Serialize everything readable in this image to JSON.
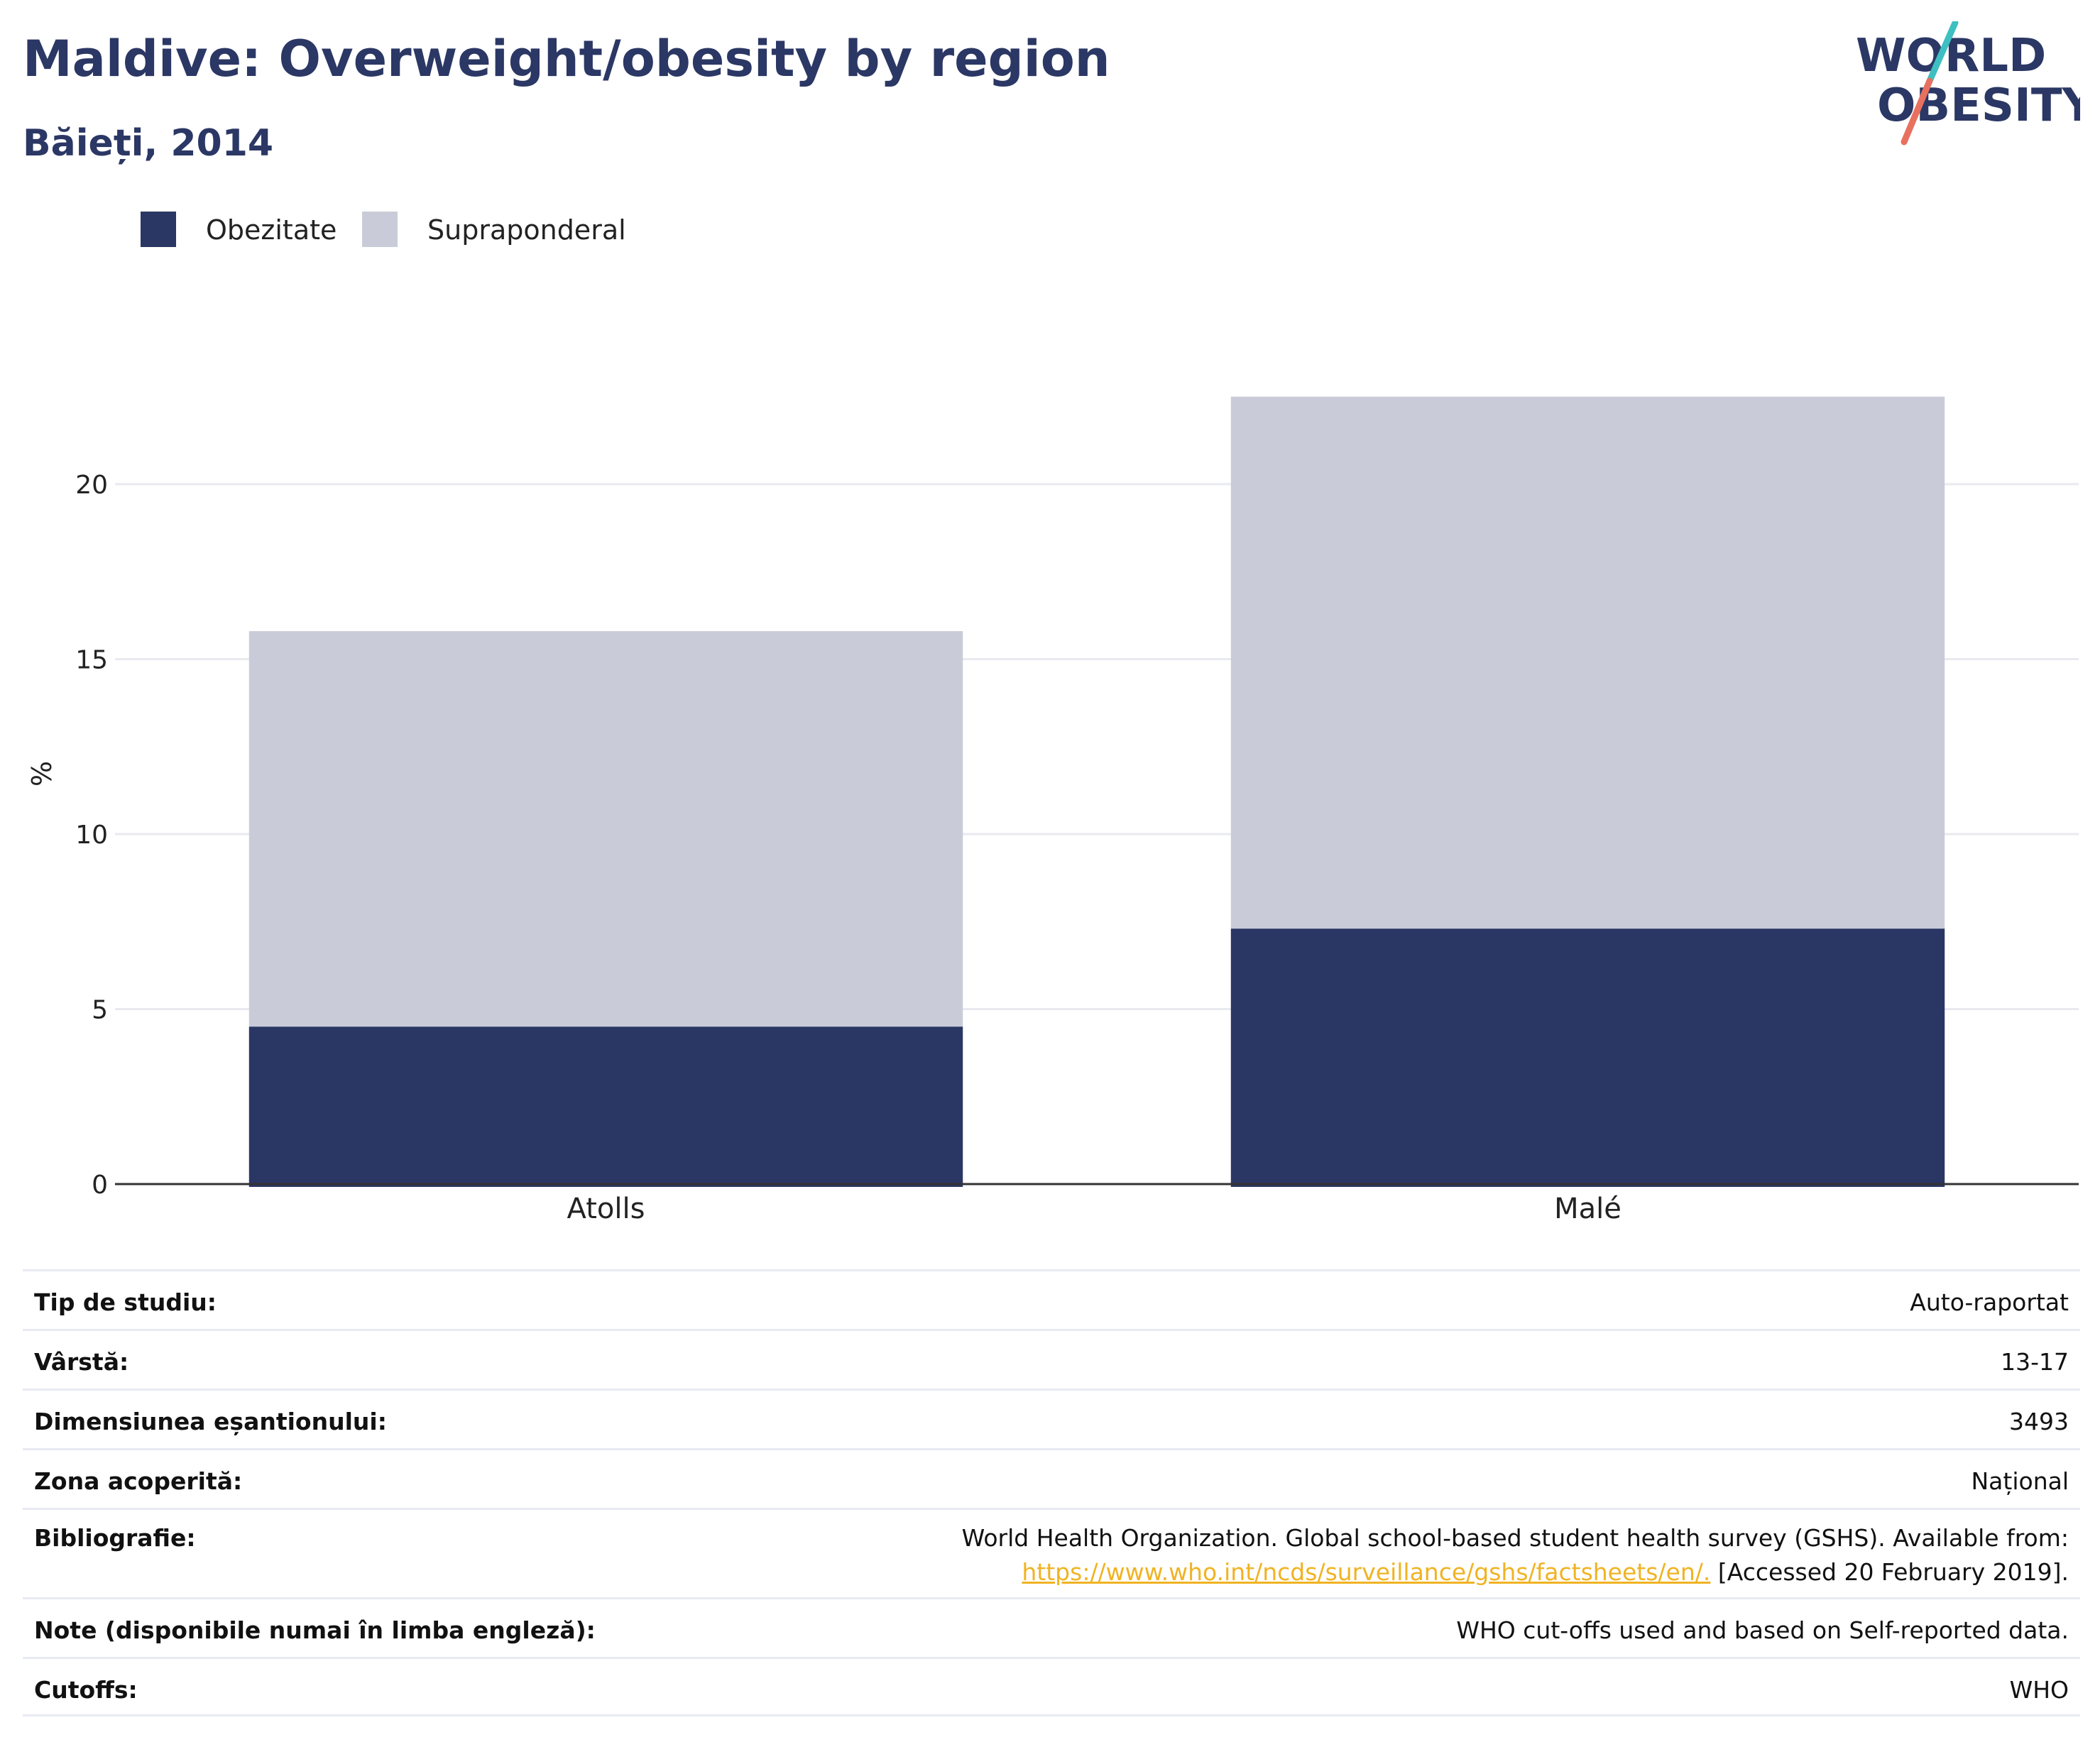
{
  "header": {
    "title": "Maldive: Overweight/obesity by region",
    "subtitle": "Băieți, 2014"
  },
  "logo": {
    "line1": "WORLD",
    "line2": "OBESITY",
    "accent_teal": "#3ebfc1",
    "accent_coral": "#e8705f",
    "text_color": "#2b3764"
  },
  "colors": {
    "obesity": "#2a3764",
    "overweight": "#c9ccd8",
    "grid": "#e9eaf0",
    "axis": "#333333",
    "link": "#f0b323"
  },
  "chart_data": {
    "type": "bar",
    "stacked": true,
    "categories": [
      "Atolls",
      "Malé"
    ],
    "series": [
      {
        "name": "Obezitate",
        "values": [
          4.5,
          7.3
        ],
        "color": "#2a3764"
      },
      {
        "name": "Supraponderal",
        "values": [
          11.3,
          15.2
        ],
        "color": "#c9ccd8"
      }
    ],
    "ylabel": "%",
    "ylim": [
      0,
      24
    ],
    "yticks": [
      0,
      5,
      10,
      15,
      20
    ],
    "grid": true,
    "legend": "top-left"
  },
  "meta": {
    "rows": [
      {
        "label": "Tip de studiu:",
        "value": "Auto-raportat"
      },
      {
        "label": "Vârstă:",
        "value": "13-17"
      },
      {
        "label": "Dimensiunea eșantionului:",
        "value": "3493"
      },
      {
        "label": "Zona acoperită:",
        "value": "Național"
      },
      {
        "label": "Bibliografie:",
        "value_line1": "World Health Organization. Global school-based student health survey (GSHS). Available from:",
        "link": "https://www.who.int/ncds/surveillance/gshs/factsheets/en/.",
        "value_after_link": " [Accessed 20 February 2019]."
      },
      {
        "label": "Note (disponibile numai în limba engleză):",
        "value": "WHO cut-offs used and based on Self-reported data."
      },
      {
        "label": "Cutoffs:",
        "value": "WHO"
      }
    ]
  }
}
